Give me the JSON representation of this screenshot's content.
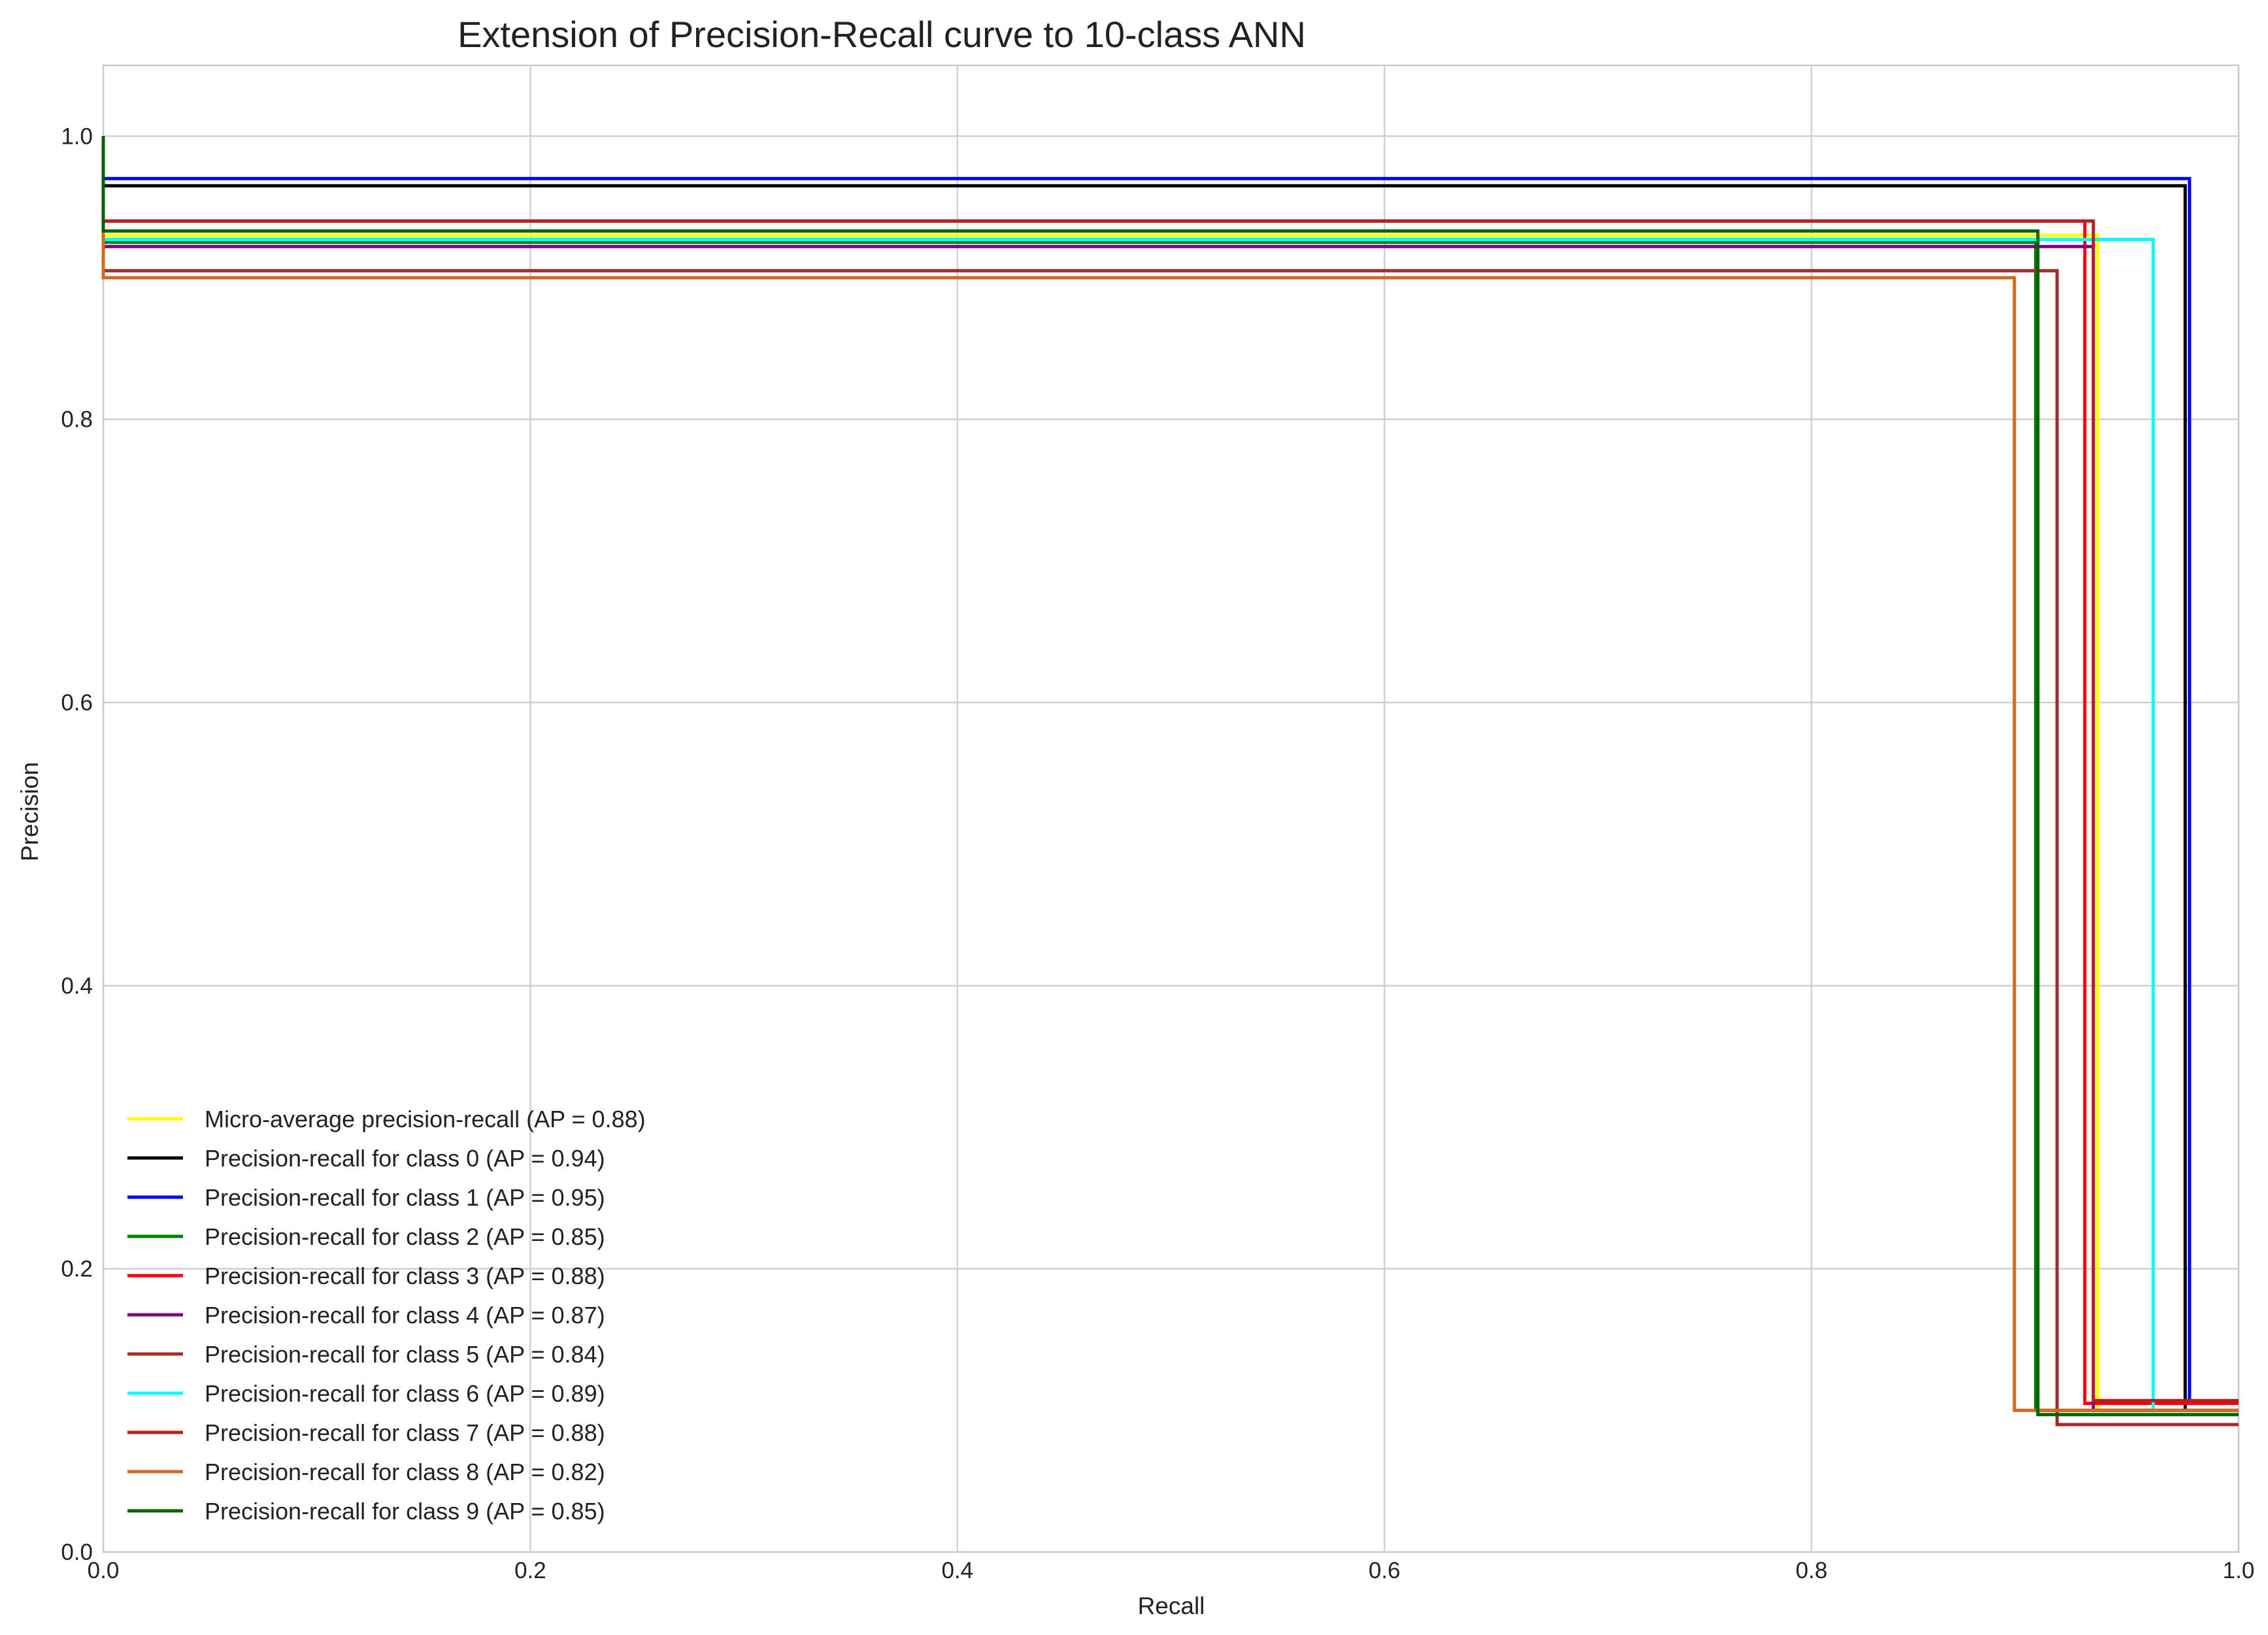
{
  "chart_data": {
    "type": "line",
    "title": "Extension of Precision-Recall curve to 10-class ANN",
    "xlabel": "Recall",
    "ylabel": "Precision",
    "xlim": [
      0.0,
      1.0
    ],
    "ylim": [
      0.0,
      1.05
    ],
    "xticks": [
      "0.0",
      "0.2",
      "0.4",
      "0.6",
      "0.8",
      "1.0"
    ],
    "yticks": [
      "0.0",
      "0.2",
      "0.4",
      "0.6",
      "0.8",
      "1.0"
    ],
    "grid": true,
    "legend_position": "lower-left",
    "series": [
      {
        "name": "Micro-average precision-recall (AP = 0.88)",
        "color": "#ffff00",
        "x": [
          0.0,
          0.0,
          0.934,
          0.934,
          1.0
        ],
        "y": [
          1.0,
          0.93,
          0.93,
          0.1,
          0.1
        ]
      },
      {
        "name": "Precision-recall for class 0 (AP = 0.94)",
        "color": "#000000",
        "x": [
          0.0,
          0.0,
          0.975,
          0.975,
          1.0
        ],
        "y": [
          1.0,
          0.965,
          0.965,
          0.1,
          0.1
        ]
      },
      {
        "name": "Precision-recall for class 1 (AP = 0.95)",
        "color": "#0000ff",
        "x": [
          0.0,
          0.0,
          0.977,
          0.977,
          1.0
        ],
        "y": [
          1.0,
          0.97,
          0.97,
          0.105,
          0.105
        ]
      },
      {
        "name": "Precision-recall for class 2 (AP = 0.85)",
        "color": "#008000",
        "x": [
          0.0,
          0.0,
          0.905,
          0.905,
          1.0
        ],
        "y": [
          1.0,
          0.925,
          0.925,
          0.1,
          0.1
        ]
      },
      {
        "name": "Precision-recall for class 3 (AP = 0.88)",
        "color": "#ff0000",
        "x": [
          0.0,
          0.0,
          0.928,
          0.928,
          1.0
        ],
        "y": [
          1.0,
          0.94,
          0.94,
          0.105,
          0.105
        ]
      },
      {
        "name": "Precision-recall for class 4 (AP = 0.87)",
        "color": "#800080",
        "x": [
          0.0,
          0.0,
          0.932,
          0.932,
          1.0
        ],
        "y": [
          1.0,
          0.922,
          0.922,
          0.1,
          0.1
        ]
      },
      {
        "name": "Precision-recall for class 5 (AP = 0.84)",
        "color": "#a52a2a",
        "x": [
          0.0,
          0.0,
          0.915,
          0.915,
          1.0
        ],
        "y": [
          1.0,
          0.905,
          0.905,
          0.09,
          0.09
        ]
      },
      {
        "name": "Precision-recall for class 6 (AP = 0.89)",
        "color": "#00ffff",
        "x": [
          0.0,
          0.0,
          0.96,
          0.96,
          1.0
        ],
        "y": [
          1.0,
          0.927,
          0.927,
          0.1,
          0.1
        ]
      },
      {
        "name": "Precision-recall for class 7 (AP = 0.88)",
        "color": "#b22222",
        "x": [
          0.0,
          0.0,
          0.932,
          0.932,
          1.0
        ],
        "y": [
          1.0,
          0.94,
          0.94,
          0.107,
          0.107
        ]
      },
      {
        "name": "Precision-recall for class 8 (AP = 0.82)",
        "color": "#d2691e",
        "x": [
          0.0,
          0.0,
          0.895,
          0.895,
          1.0
        ],
        "y": [
          1.0,
          0.9,
          0.9,
          0.1,
          0.1
        ]
      },
      {
        "name": "Precision-recall for class 9 (AP = 0.85)",
        "color": "#006400",
        "x": [
          0.0,
          0.0,
          0.906,
          0.906,
          1.0
        ],
        "y": [
          1.0,
          0.933,
          0.933,
          0.097,
          0.097
        ]
      }
    ]
  }
}
